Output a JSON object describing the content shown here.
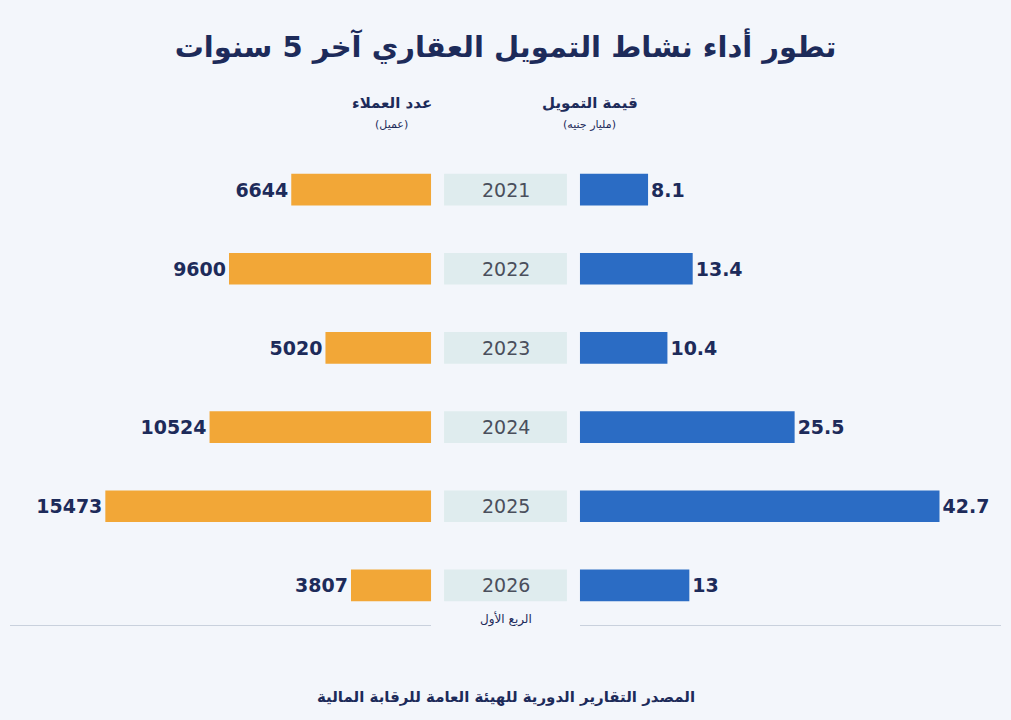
{
  "title": "تطور أداء نشاط التمويل العقاري آخر 5 سنوات",
  "source": "المصدر التقارير الدورية للهيئة العامة للرقابة المالية",
  "chart_data": [
    {
      "type": "bar",
      "orientation": "horizontal",
      "title": "عدد العملاء",
      "subtitle": "(عميل)",
      "categories": [
        "2021",
        "2022",
        "2023",
        "2024",
        "2025",
        "2026"
      ],
      "values": [
        6644,
        9600,
        5020,
        10524,
        15473,
        3807
      ],
      "color": "#f2a737",
      "xlim": [
        0,
        20000
      ],
      "data_labels": true,
      "tick_labels": "y",
      "grid": false,
      "annotations": [
        {
          "category": "2026",
          "text": "الربع الأول"
        }
      ]
    },
    {
      "type": "bar",
      "orientation": "horizontal",
      "title": "قيمة التمويل",
      "subtitle": "(مليار جنيه)",
      "categories": [
        "2021",
        "2022",
        "2023",
        "2024",
        "2025",
        "2026"
      ],
      "values": [
        8.1,
        13.4,
        10.4,
        25.5,
        42.7,
        13
      ],
      "color": "#2b6cc4",
      "xlim": [
        0,
        50
      ],
      "data_labels": true,
      "tick_labels": "y",
      "grid": false
    }
  ]
}
